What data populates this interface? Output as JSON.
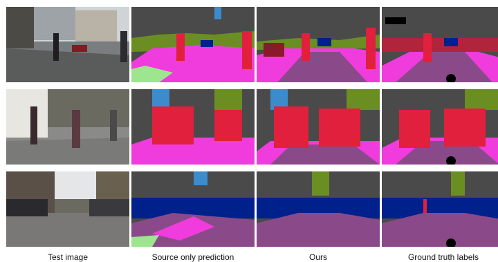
{
  "columns": [
    {
      "caption": "Test image"
    },
    {
      "caption": "Source only prediction"
    },
    {
      "caption": "Ours"
    },
    {
      "caption": "Ground truth labels"
    }
  ],
  "rows": 3,
  "colors": {
    "road": "#8a4a8a",
    "sidewalk": "#f03cdc",
    "building": "#4a4a4a",
    "vegetation": "#6b8e23",
    "sky": "#3c8ccc",
    "car": "#00208c",
    "person": "#e0203c",
    "terrain": "#9ee58f",
    "ego_vehicle": "#000000"
  }
}
